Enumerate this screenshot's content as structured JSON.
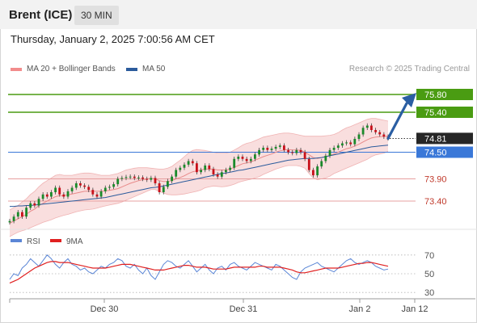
{
  "header": {
    "title": "Brent (ICE)",
    "timeframe": "30 MIN"
  },
  "timestamp": "Thursday, January 2, 2025 7:00:56 AM CET",
  "legend": {
    "items": [
      {
        "label": "MA 20 + Bollinger Bands",
        "color": "#f28c8c"
      },
      {
        "label": "MA 50",
        "color": "#2b5b9c"
      }
    ],
    "credit": "Research © 2025 Trading Central"
  },
  "rsi_legend": {
    "items": [
      {
        "label": "RSI",
        "color": "#5b86d6"
      },
      {
        "label": "9MA",
        "color": "#e02020"
      }
    ]
  },
  "chart_data": [
    {
      "type": "candlestick",
      "title": "Brent (ICE)",
      "timeframe": "30 MIN",
      "x_ticks": [
        "Dec 30",
        "Dec 31",
        "Jan 2",
        "Jan 12"
      ],
      "ylim": [
        72.8,
        76.2
      ],
      "levels": [
        {
          "value": 75.8,
          "label": "75.80",
          "role": "resistance",
          "color": "#4a9c12",
          "label_bg": "#4a9c12"
        },
        {
          "value": 75.4,
          "label": "75.40",
          "role": "resistance",
          "color": "#4a9c12",
          "label_bg": "#4a9c12"
        },
        {
          "value": 74.81,
          "label": "74.81",
          "role": "last",
          "color": "#333333",
          "label_bg": "#262626"
        },
        {
          "value": 74.5,
          "label": "74.50",
          "role": "pivot",
          "color": "#3a78d8",
          "label_bg": "#3a78d8"
        },
        {
          "value": 73.9,
          "label": "73.90",
          "role": "support",
          "color": "#e7a0a0",
          "label_bg": null
        },
        {
          "value": 73.4,
          "label": "73.40",
          "role": "support",
          "color": "#e7a0a0",
          "label_bg": null
        }
      ],
      "scenario_arrow": {
        "from": 74.81,
        "to": 75.8
      },
      "price_path": [
        72.95,
        73.05,
        73.15,
        73.05,
        73.25,
        73.35,
        73.3,
        73.45,
        73.55,
        73.5,
        73.6,
        73.7,
        73.55,
        73.5,
        73.62,
        73.7,
        73.8,
        73.75,
        73.72,
        73.65,
        73.55,
        73.5,
        73.62,
        73.7,
        73.72,
        73.78,
        73.9,
        73.92,
        73.94,
        73.95,
        73.92,
        73.93,
        73.9,
        73.88,
        73.92,
        73.8,
        73.6,
        73.72,
        73.85,
        73.95,
        74.1,
        74.15,
        74.22,
        74.3,
        74.25,
        74.05,
        74.1,
        74.2,
        74.12,
        74.0,
        73.95,
        74.05,
        74.1,
        74.15,
        74.35,
        74.4,
        74.35,
        74.3,
        74.35,
        74.45,
        74.55,
        74.6,
        74.55,
        74.58,
        74.62,
        74.65,
        74.55,
        74.5,
        74.48,
        74.55,
        74.5,
        74.35,
        74.1,
        73.98,
        74.18,
        74.3,
        74.42,
        74.55,
        74.6,
        74.65,
        74.7,
        74.72,
        74.68,
        74.8,
        74.9,
        75.05,
        75.1,
        75.0,
        74.95,
        74.9,
        74.85,
        74.81
      ],
      "ma20": [
        72.9,
        72.95,
        73.0,
        73.05,
        73.1,
        73.17,
        73.22,
        73.3,
        73.35,
        73.4,
        73.45,
        73.5,
        73.52,
        73.52,
        73.54,
        73.56,
        73.58,
        73.6,
        73.62,
        73.62,
        73.62,
        73.62,
        73.62,
        73.63,
        73.64,
        73.66,
        73.68,
        73.72,
        73.76,
        73.8,
        73.83,
        73.86,
        73.88,
        73.9,
        73.91,
        73.9,
        73.86,
        73.84,
        73.84,
        73.86,
        73.9,
        73.93,
        73.97,
        74.02,
        74.06,
        74.08,
        74.1,
        74.12,
        74.12,
        74.12,
        74.1,
        74.1,
        74.1,
        74.12,
        74.16,
        74.2,
        74.24,
        74.26,
        74.28,
        74.32,
        74.36,
        74.4,
        74.43,
        74.46,
        74.5,
        74.53,
        74.55,
        74.56,
        74.55,
        74.55,
        74.54,
        74.5,
        74.44,
        74.38,
        74.36,
        74.38,
        74.4,
        74.43,
        74.46,
        74.5,
        74.54,
        74.58,
        74.6,
        74.64,
        74.68,
        74.73,
        74.78,
        74.82,
        74.84,
        74.85,
        74.86,
        74.86
      ],
      "bb_upper": [
        73.2,
        73.25,
        73.3,
        73.38,
        73.45,
        73.55,
        73.62,
        73.72,
        73.8,
        73.86,
        73.92,
        73.98,
        74.0,
        73.98,
        73.98,
        73.98,
        74.0,
        74.02,
        74.03,
        74.03,
        74.02,
        74.0,
        73.98,
        73.98,
        73.98,
        74.0,
        74.02,
        74.06,
        74.1,
        74.12,
        74.14,
        74.15,
        74.15,
        74.15,
        74.14,
        74.13,
        74.12,
        74.12,
        74.14,
        74.18,
        74.25,
        74.32,
        74.4,
        74.48,
        74.54,
        74.56,
        74.55,
        74.54,
        74.52,
        74.5,
        74.48,
        74.48,
        74.48,
        74.5,
        74.55,
        74.6,
        74.66,
        74.7,
        74.72,
        74.76,
        74.8,
        74.84,
        74.86,
        74.88,
        74.9,
        74.92,
        74.93,
        74.93,
        74.92,
        74.9,
        74.88,
        74.86,
        74.86,
        74.86,
        74.86,
        74.86,
        74.87,
        74.88,
        74.9,
        74.94,
        75.0,
        75.05,
        75.08,
        75.12,
        75.16,
        75.2,
        75.24,
        75.26,
        75.26,
        75.24,
        75.22,
        75.2
      ],
      "bb_lower": [
        72.6,
        72.65,
        72.7,
        72.73,
        72.76,
        72.8,
        72.84,
        72.88,
        72.92,
        72.95,
        72.98,
        73.02,
        73.05,
        73.08,
        73.1,
        73.13,
        73.16,
        73.18,
        73.2,
        73.21,
        73.22,
        73.24,
        73.27,
        73.29,
        73.31,
        73.33,
        73.35,
        73.38,
        73.42,
        73.46,
        73.5,
        73.54,
        73.58,
        73.62,
        73.66,
        73.66,
        73.62,
        73.58,
        73.55,
        73.54,
        73.54,
        73.55,
        73.56,
        73.58,
        73.6,
        73.62,
        73.65,
        73.7,
        73.72,
        73.74,
        73.73,
        73.72,
        73.73,
        73.75,
        73.78,
        73.82,
        73.85,
        73.87,
        73.89,
        73.92,
        73.95,
        74.0,
        74.04,
        74.08,
        74.12,
        74.15,
        74.18,
        74.2,
        74.2,
        74.2,
        74.18,
        74.14,
        74.02,
        73.92,
        73.88,
        73.9,
        73.92,
        73.96,
        74.02,
        74.06,
        74.1,
        74.14,
        74.18,
        74.22,
        74.26,
        74.3,
        74.34,
        74.4,
        74.44,
        74.46,
        74.48,
        74.52
      ],
      "ma50": [
        73.28,
        73.28,
        73.29,
        73.29,
        73.3,
        73.3,
        73.31,
        73.32,
        73.33,
        73.34,
        73.35,
        73.36,
        73.37,
        73.38,
        73.39,
        73.4,
        73.41,
        73.42,
        73.43,
        73.44,
        73.45,
        73.46,
        73.47,
        73.48,
        73.5,
        73.52,
        73.54,
        73.56,
        73.58,
        73.6,
        73.62,
        73.64,
        73.66,
        73.68,
        73.7,
        73.71,
        73.72,
        73.74,
        73.76,
        73.78,
        73.8,
        73.82,
        73.84,
        73.86,
        73.88,
        73.9,
        73.92,
        73.94,
        73.96,
        73.98,
        74.0,
        74.02,
        74.03,
        74.05,
        74.07,
        74.09,
        74.1,
        74.12,
        74.14,
        74.16,
        74.18,
        74.2,
        74.22,
        74.24,
        74.26,
        74.28,
        74.3,
        74.32,
        74.33,
        74.34,
        74.35,
        74.36,
        74.36,
        74.36,
        74.37,
        74.38,
        74.4,
        74.42,
        74.44,
        74.46,
        74.48,
        74.5,
        74.52,
        74.54,
        74.56,
        74.58,
        74.6,
        74.62,
        74.63,
        74.64,
        74.65,
        74.66
      ]
    },
    {
      "type": "line",
      "title": "RSI",
      "ylim": [
        25,
        75
      ],
      "y_ticks": [
        70,
        50,
        30
      ],
      "series": [
        {
          "name": "RSI",
          "color": "#5b86d6",
          "values": [
            44,
            50,
            48,
            56,
            60,
            66,
            62,
            58,
            64,
            70,
            66,
            60,
            56,
            62,
            66,
            60,
            58,
            54,
            56,
            52,
            50,
            54,
            58,
            56,
            60,
            62,
            66,
            64,
            58,
            56,
            60,
            54,
            50,
            56,
            48,
            44,
            52,
            60,
            64,
            62,
            58,
            56,
            60,
            64,
            58,
            52,
            56,
            60,
            54,
            50,
            56,
            58,
            54,
            60,
            62,
            58,
            56,
            54,
            58,
            62,
            60,
            58,
            56,
            54,
            60,
            58,
            54,
            50,
            46,
            44,
            52,
            56,
            58,
            60,
            62,
            58,
            56,
            54,
            52,
            56,
            60,
            64,
            66,
            62,
            60,
            62,
            64,
            62,
            58,
            56,
            54,
            55
          ]
        },
        {
          "name": "9MA",
          "color": "#e02020",
          "values": [
            40,
            42,
            44,
            47,
            50,
            53,
            56,
            58,
            60,
            62,
            63,
            63,
            62,
            62,
            62,
            61,
            60,
            59,
            58,
            57,
            56,
            56,
            56,
            56,
            57,
            58,
            59,
            60,
            60,
            60,
            59,
            58,
            57,
            56,
            55,
            54,
            54,
            54,
            55,
            56,
            57,
            58,
            59,
            59,
            58,
            57,
            57,
            57,
            56,
            55,
            55,
            55,
            55,
            56,
            57,
            57,
            57,
            57,
            57,
            57,
            58,
            58,
            57,
            57,
            57,
            57,
            56,
            55,
            54,
            52,
            51,
            51,
            52,
            53,
            54,
            55,
            56,
            56,
            56,
            56,
            57,
            58,
            59,
            60,
            61,
            61,
            62,
            62,
            61,
            60,
            59,
            58
          ]
        }
      ]
    }
  ]
}
